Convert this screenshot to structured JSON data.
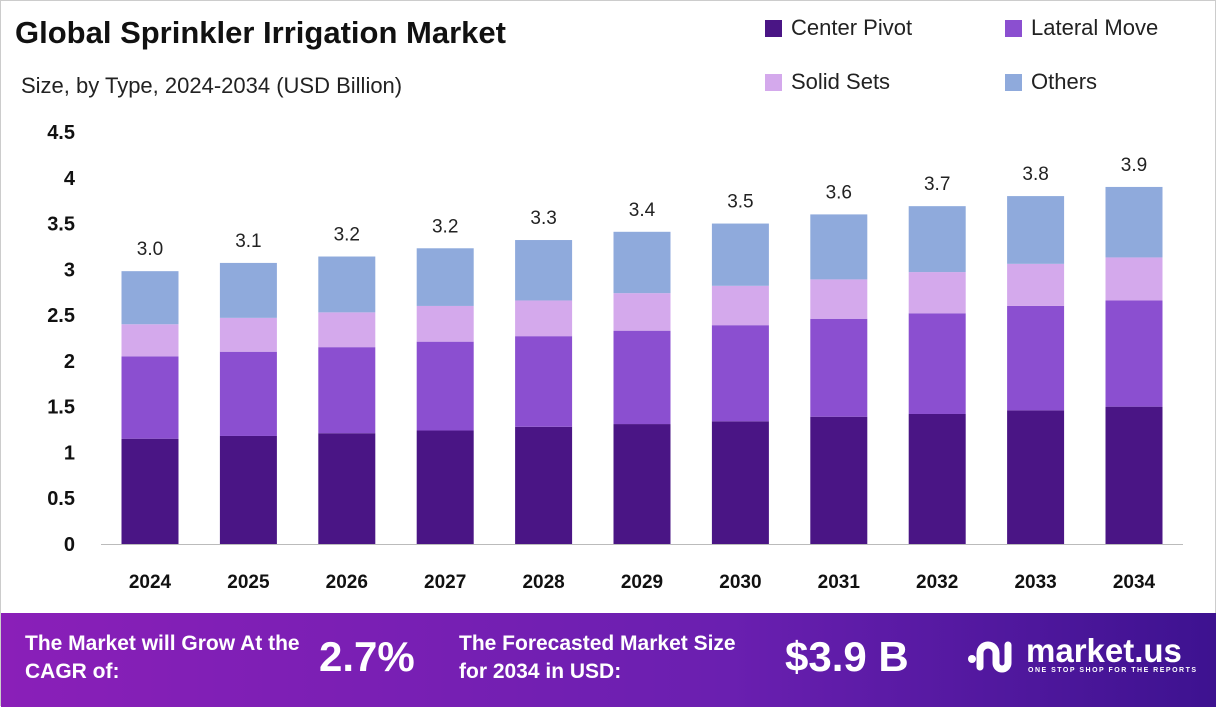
{
  "chart_data": {
    "type": "stacked-bar",
    "title": "Global Sprinkler Irrigation Market",
    "subtitle": "Size, by Type, 2024-2034 (USD Billion)",
    "categories": [
      "2024",
      "2025",
      "2026",
      "2027",
      "2028",
      "2029",
      "2030",
      "2031",
      "2032",
      "2033",
      "2034"
    ],
    "series": [
      {
        "name": "Center Pivot",
        "color": "#4a1585",
        "values": [
          1.15,
          1.18,
          1.21,
          1.24,
          1.28,
          1.31,
          1.34,
          1.39,
          1.42,
          1.46,
          1.5
        ]
      },
      {
        "name": "Lateral Move",
        "color": "#8b4fd0",
        "values": [
          0.9,
          0.92,
          0.94,
          0.97,
          0.99,
          1.02,
          1.05,
          1.07,
          1.1,
          1.14,
          1.16
        ]
      },
      {
        "name": "Solid Sets",
        "color": "#d4a9ec",
        "values": [
          0.35,
          0.37,
          0.38,
          0.39,
          0.39,
          0.41,
          0.43,
          0.43,
          0.45,
          0.46,
          0.47
        ]
      },
      {
        "name": "Others",
        "color": "#8faadc",
        "values": [
          0.58,
          0.6,
          0.61,
          0.63,
          0.66,
          0.67,
          0.68,
          0.71,
          0.72,
          0.74,
          0.77
        ]
      }
    ],
    "totals": [
      "3.0",
      "3.1",
      "3.2",
      "3.2",
      "3.3",
      "3.4",
      "3.5",
      "3.6",
      "3.7",
      "3.8",
      "3.9"
    ],
    "yticks": [
      "0",
      "0.5",
      "1",
      "1.5",
      "2",
      "2.5",
      "3",
      "3.5",
      "4",
      "4.5"
    ],
    "ylim": [
      0,
      4.5
    ],
    "grid": false,
    "legend": "top-right"
  },
  "footer": {
    "cagr_label": "The Market will Grow At the CAGR of:",
    "cagr_value": "2.7%",
    "forecast_label": "The Forecasted Market Size for 2034 in USD:",
    "forecast_value": "$3.9 B",
    "brand": "market.us",
    "tagline": "ONE STOP SHOP FOR THE REPORTS"
  }
}
